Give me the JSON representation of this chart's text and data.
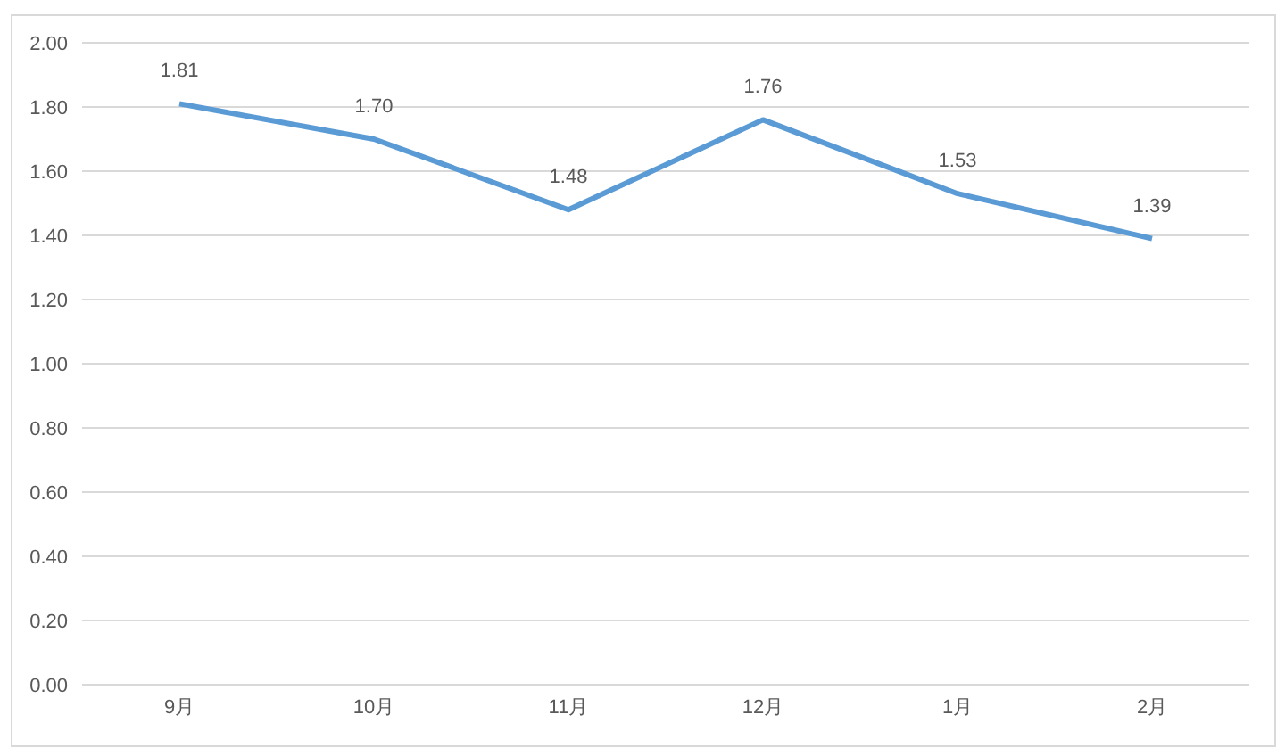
{
  "chart_data": {
    "type": "line",
    "categories": [
      "9月",
      "10月",
      "11月",
      "12月",
      "1月",
      "2月"
    ],
    "values": [
      1.81,
      1.7,
      1.48,
      1.76,
      1.53,
      1.39
    ],
    "value_labels": [
      "1.81",
      "1.70",
      "1.48",
      "1.76",
      "1.53",
      "1.39"
    ],
    "color": "#5b9bd5",
    "ylim": [
      0,
      2
    ],
    "yticks": [
      {
        "value": 0,
        "label": "0.00"
      },
      {
        "value": 0.2,
        "label": "0.20"
      },
      {
        "value": 0.4,
        "label": "0.40"
      },
      {
        "value": 0.6,
        "label": "0.60"
      },
      {
        "value": 0.8,
        "label": "0.80"
      },
      {
        "value": 1,
        "label": "1.00"
      },
      {
        "value": 1.2,
        "label": "1.20"
      },
      {
        "value": 1.4,
        "label": "1.40"
      },
      {
        "value": 1.6,
        "label": "1.60"
      },
      {
        "value": 1.8,
        "label": "1.80"
      },
      {
        "value": 2,
        "label": "2.00"
      }
    ],
    "grid": "y",
    "marker": "none"
  }
}
